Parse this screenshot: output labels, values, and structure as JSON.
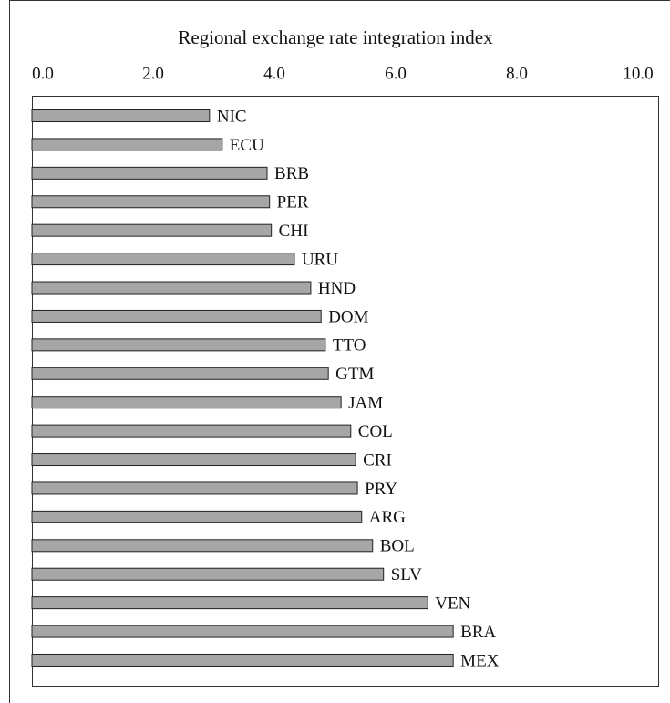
{
  "chart_data": {
    "type": "bar",
    "orientation": "horizontal",
    "title": "Regional exchange rate integration index",
    "categories": [
      "NIC",
      "ECU",
      "BRB",
      "PER",
      "CHI",
      "URU",
      "HND",
      "DOM",
      "TTO",
      "GTM",
      "JAM",
      "COL",
      "CRI",
      "PRY",
      "ARG",
      "BOL",
      "SLV",
      "VEN",
      "BRA",
      "MEX"
    ],
    "values": [
      2.93,
      3.14,
      3.88,
      3.92,
      3.95,
      4.33,
      4.6,
      4.77,
      4.84,
      4.89,
      5.1,
      5.26,
      5.34,
      5.37,
      5.44,
      5.62,
      5.8,
      6.53,
      6.95,
      6.95
    ],
    "color": "#a6a6a6",
    "xlim": [
      0,
      10
    ],
    "xticks": [
      {
        "value": 0,
        "label": "0.0"
      },
      {
        "value": 2,
        "label": "2.0"
      },
      {
        "value": 4,
        "label": "4.0"
      },
      {
        "value": 6,
        "label": "6.0"
      },
      {
        "value": 8,
        "label": "8.0"
      },
      {
        "value": 10,
        "label": "10.0"
      }
    ]
  }
}
